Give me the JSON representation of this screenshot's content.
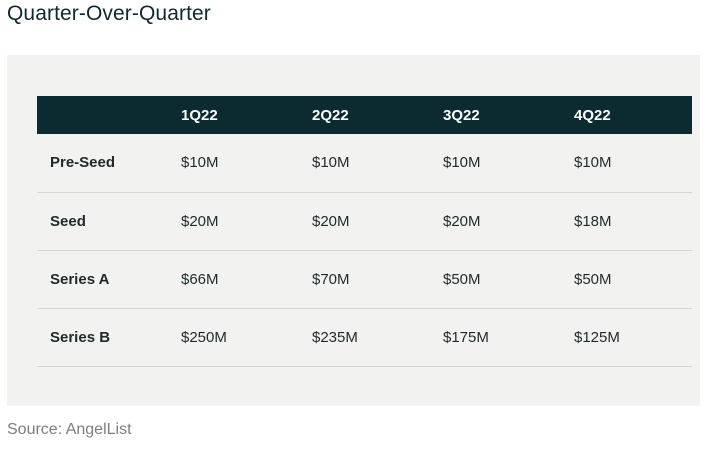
{
  "title": "Quarter-Over-Quarter",
  "table": {
    "headers": [
      "",
      "1Q22",
      "2Q22",
      "3Q22",
      "4Q22"
    ],
    "rows": [
      {
        "label": "Pre-Seed",
        "values": [
          "$10M",
          "$10M",
          "$10M",
          "$10M"
        ]
      },
      {
        "label": "Seed",
        "values": [
          "$20M",
          "$20M",
          "$20M",
          "$18M"
        ]
      },
      {
        "label": "Series A",
        "values": [
          "$66M",
          "$70M",
          "$50M",
          "$50M"
        ]
      },
      {
        "label": "Series B",
        "values": [
          "$250M",
          "$235M",
          "$175M",
          "$125M"
        ]
      }
    ]
  },
  "source": "Source: AngelList",
  "colors": {
    "header_background": "#0c2b30",
    "header_text": "#ffffff",
    "panel_background": "#f2f2f0",
    "row_divider": "#d6d6d4"
  }
}
